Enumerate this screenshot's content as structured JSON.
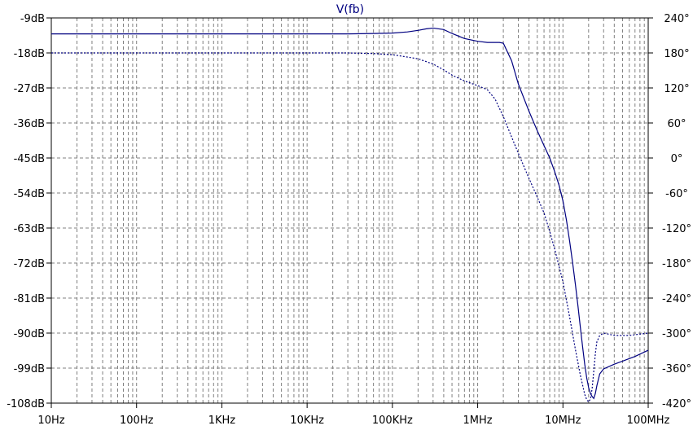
{
  "colors": {
    "trace": "#000080",
    "grid": "#808080",
    "frame": "#000000",
    "background": "#ffffff"
  },
  "chart_data": {
    "type": "line",
    "title": "V(fb)",
    "xscale": "log",
    "xlim": [
      10,
      100000000
    ],
    "ylim_left": [
      -108,
      -9
    ],
    "ylim_right": [
      -420,
      240
    ],
    "grid": true,
    "x_ticks": [
      {
        "value": 10,
        "label": "10Hz"
      },
      {
        "value": 100,
        "label": "100Hz"
      },
      {
        "value": 1000,
        "label": "1KHz"
      },
      {
        "value": 10000,
        "label": "10KHz"
      },
      {
        "value": 100000,
        "label": "100KHz"
      },
      {
        "value": 1000000,
        "label": "1MHz"
      },
      {
        "value": 10000000,
        "label": "10MHz"
      },
      {
        "value": 100000000,
        "label": "100MHz"
      }
    ],
    "y_left_ticks": [
      {
        "value": -9,
        "label": "-9dB"
      },
      {
        "value": -18,
        "label": "-18dB"
      },
      {
        "value": -27,
        "label": "-27dB"
      },
      {
        "value": -36,
        "label": "-36dB"
      },
      {
        "value": -45,
        "label": "-45dB"
      },
      {
        "value": -54,
        "label": "-54dB"
      },
      {
        "value": -63,
        "label": "-63dB"
      },
      {
        "value": -72,
        "label": "-72dB"
      },
      {
        "value": -81,
        "label": "-81dB"
      },
      {
        "value": -90,
        "label": "-90dB"
      },
      {
        "value": -99,
        "label": "-99dB"
      },
      {
        "value": -108,
        "label": "-108dB"
      }
    ],
    "y_right_ticks": [
      {
        "value": 240,
        "label": "240°"
      },
      {
        "value": 180,
        "label": "180°"
      },
      {
        "value": 120,
        "label": "120°"
      },
      {
        "value": 60,
        "label": "60°"
      },
      {
        "value": 0,
        "label": "0°"
      },
      {
        "value": -60,
        "label": "-60°"
      },
      {
        "value": -120,
        "label": "-120°"
      },
      {
        "value": -180,
        "label": "-180°"
      },
      {
        "value": -240,
        "label": "-240°"
      },
      {
        "value": -300,
        "label": "-300°"
      },
      {
        "value": -360,
        "label": "-360°"
      },
      {
        "value": -420,
        "label": "-420°"
      }
    ],
    "series": [
      {
        "axis": "left",
        "style": "solid",
        "x": [
          10,
          100,
          1000,
          10000,
          30000,
          60000,
          100000,
          150000,
          200000,
          250000,
          300000,
          400000,
          500000,
          700000,
          1000000,
          1300000,
          1500000,
          1800000,
          2000000,
          2500000,
          3000000,
          4000000,
          5000000,
          6000000,
          7000000,
          8000000,
          9000000,
          10000000,
          11000000,
          12000000,
          13000000,
          14000000,
          15000000,
          16000000,
          17000000,
          18000000,
          19000000,
          20000000,
          21000000,
          22000000,
          23000000,
          24000000,
          25000000,
          27000000,
          30000000,
          40000000,
          50000000,
          70000000,
          100000000
        ],
        "y": [
          -13.1,
          -13.1,
          -13.1,
          -13.1,
          -13.1,
          -13.0,
          -12.9,
          -12.6,
          -12.2,
          -11.8,
          -11.6,
          -12.0,
          -13.0,
          -14.3,
          -15.0,
          -15.3,
          -15.3,
          -15.3,
          -15.5,
          -20.0,
          -26.0,
          -33.0,
          -38.0,
          -41.8,
          -45.0,
          -48.5,
          -52.0,
          -56.0,
          -61.0,
          -66.5,
          -72.0,
          -77.5,
          -83.0,
          -88.5,
          -93.5,
          -98.0,
          -101.5,
          -104.0,
          -105.5,
          -106.3,
          -106.8,
          -105.5,
          -103.5,
          -100.5,
          -99.2,
          -98.0,
          -97.2,
          -96.0,
          -94.4
        ]
      },
      {
        "axis": "right",
        "style": "dotted",
        "x": [
          10,
          100,
          1000,
          10000,
          30000,
          60000,
          100000,
          200000,
          300000,
          400000,
          500000,
          700000,
          1000000,
          1300000,
          1600000,
          2000000,
          2500000,
          3000000,
          3500000,
          4000000,
          5000000,
          6000000,
          7000000,
          8000000,
          10000000,
          12000000,
          14000000,
          16000000,
          18000000,
          19000000,
          20000000,
          21000000,
          22000000,
          23000000,
          24000000,
          25000000,
          27000000,
          30000000,
          40000000,
          60000000,
          100000000
        ],
        "y": [
          180,
          180,
          180,
          180,
          180,
          179,
          177,
          170,
          161,
          151,
          142,
          132,
          124,
          117,
          101,
          71,
          36,
          8,
          -15,
          -35,
          -67,
          -94,
          -126,
          -156,
          -212,
          -273,
          -328,
          -372,
          -405,
          -414,
          -418,
          -413,
          -395,
          -365,
          -335,
          -315,
          -304,
          -300,
          -304,
          -304,
          -300
        ]
      }
    ]
  }
}
